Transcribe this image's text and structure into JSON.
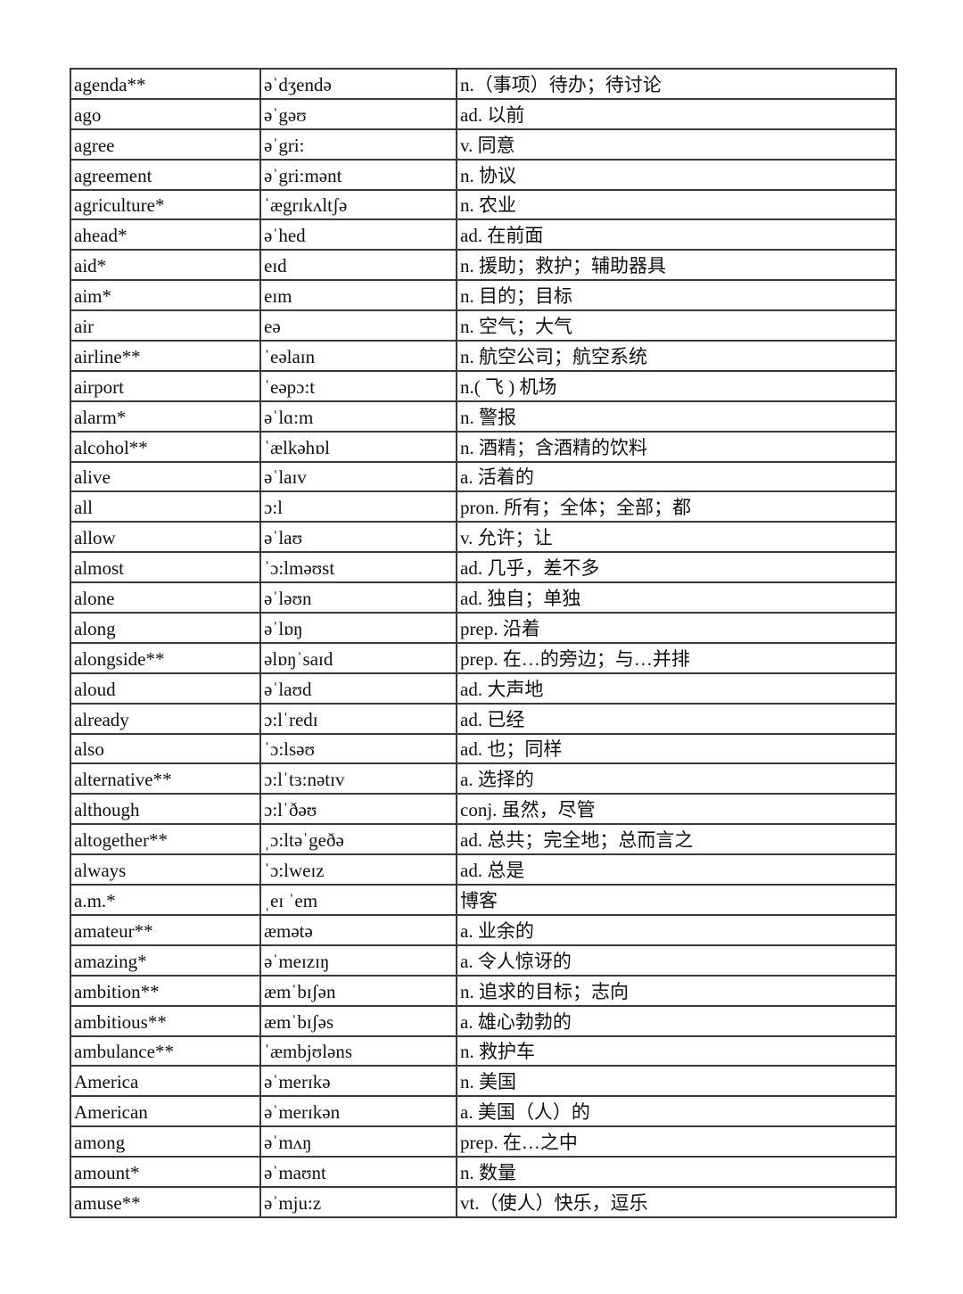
{
  "rows": [
    [
      "agenda**",
      "əˈdʒendə",
      "n.（事项）待办；待讨论"
    ],
    [
      "ago",
      "əˈgəʊ",
      "ad. 以前"
    ],
    [
      "agree",
      "əˈgri:",
      "v. 同意"
    ],
    [
      "agreement",
      "əˈgri:mənt",
      "n. 协议"
    ],
    [
      "agriculture*",
      "ˈægrɪkʌltʃə",
      "n. 农业"
    ],
    [
      "ahead*",
      "əˈhed",
      "ad. 在前面"
    ],
    [
      "aid*",
      "eɪd",
      "n. 援助；救护；辅助器具"
    ],
    [
      "aim*",
      "eɪm",
      "n. 目的；目标"
    ],
    [
      "air",
      "eə",
      "n. 空气；大气"
    ],
    [
      "airline**",
      "ˈeəlaɪn",
      "n. 航空公司；航空系统"
    ],
    [
      "airport",
      "ˈeəpɔ:t",
      "n.( 飞 ) 机场"
    ],
    [
      "alarm*",
      "əˈlɑ:m",
      "n. 警报"
    ],
    [
      "alcohol**",
      "ˈælkəhɒl",
      "n. 酒精；含酒精的饮料"
    ],
    [
      "alive",
      "əˈlaɪv",
      "a. 活着的"
    ],
    [
      "all",
      "ɔ:l",
      "pron. 所有；全体；全部；都"
    ],
    [
      "allow",
      "əˈlaʊ",
      "v. 允许；让"
    ],
    [
      "almost",
      "ˈɔ:lməʊst",
      "ad. 几乎，差不多"
    ],
    [
      "alone",
      "əˈləʊn",
      "ad. 独自；单独"
    ],
    [
      "along",
      "əˈlɒŋ",
      "prep. 沿着"
    ],
    [
      "alongside**",
      "əlɒŋˈsaɪd",
      "prep. 在…的旁边；与…并排"
    ],
    [
      "aloud",
      "əˈlaʊd",
      "ad. 大声地"
    ],
    [
      "already",
      "ɔ:lˈredɪ",
      "ad. 已经"
    ],
    [
      "also",
      "ˈɔ:lsəʊ",
      "ad. 也；同样"
    ],
    [
      "alternative**",
      "ɔ:lˈtɜ:nətɪv",
      "a. 选择的"
    ],
    [
      "although",
      "ɔ:lˈðəʊ",
      "conj. 虽然，尽管"
    ],
    [
      "altogether**",
      "ˌɔ:ltəˈgeðə",
      "ad. 总共；完全地；总而言之"
    ],
    [
      "always",
      "ˈɔ:lweɪz",
      "ad. 总是"
    ],
    [
      "a.m.*",
      "ˌeɪ ˈem",
      "博客"
    ],
    [
      "amateur**",
      "æmətə",
      "a. 业余的"
    ],
    [
      "amazing*",
      "əˈmeɪzɪŋ",
      "a. 令人惊讶的"
    ],
    [
      "ambition**",
      "æmˈbɪʃən",
      "n. 追求的目标；志向"
    ],
    [
      "ambitious**",
      "æmˈbɪʃəs",
      "a. 雄心勃勃的"
    ],
    [
      "ambulance**",
      "ˈæmbjʊləns",
      "n. 救护车"
    ],
    [
      "America",
      "əˈmerɪkə",
      "n. 美国"
    ],
    [
      "American",
      "əˈmerɪkən",
      "a. 美国（人）的"
    ],
    [
      "among",
      "əˈmʌŋ",
      "prep. 在…之中"
    ],
    [
      "amount*",
      "əˈmaʊnt",
      "n. 数量"
    ],
    [
      "amuse**",
      "əˈmju:z",
      "vt.（使人）快乐，逗乐"
    ]
  ]
}
